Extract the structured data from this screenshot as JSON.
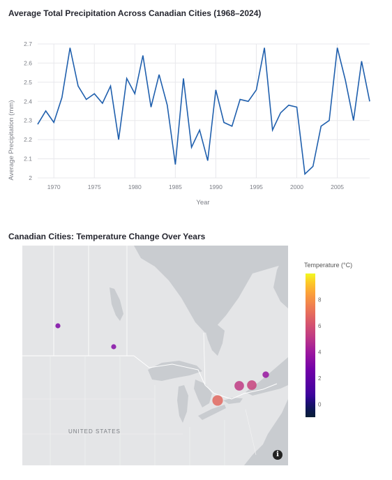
{
  "chart1_title": "Average Total Precipitation Across Canadian Cities (1968–2024)",
  "chart2_title": "Canadian Cities: Temperature Change Over Years",
  "colors": {
    "line": "#1f5fad",
    "grid": "#e8e8ec",
    "axis_text": "#7b7e86"
  },
  "chart_data": [
    {
      "type": "line",
      "title": "Average Total Precipitation Across Canadian Cities (1968–2024)",
      "xlabel": "Year",
      "ylabel": "Average Precipitation (mm)",
      "xlim": [
        1968,
        2009
      ],
      "ylim": [
        2.0,
        2.7
      ],
      "xticks": [
        1970,
        1975,
        1980,
        1985,
        1990,
        1995,
        2000,
        2005
      ],
      "yticks": [
        2,
        2.1,
        2.2,
        2.3,
        2.4,
        2.5,
        2.6,
        2.7
      ],
      "grid": true,
      "x": [
        1968,
        1969,
        1970,
        1971,
        1972,
        1973,
        1974,
        1975,
        1976,
        1977,
        1978,
        1979,
        1980,
        1981,
        1982,
        1983,
        1984,
        1985,
        1986,
        1987,
        1988,
        1989,
        1990,
        1991,
        1992,
        1993,
        1994,
        1995,
        1996,
        1997,
        1998,
        1999,
        2000,
        2001,
        2002,
        2003,
        2004,
        2005,
        2006,
        2007,
        2008,
        2009
      ],
      "y": [
        2.28,
        2.35,
        2.29,
        2.42,
        2.68,
        2.48,
        2.41,
        2.44,
        2.39,
        2.48,
        2.2,
        2.52,
        2.44,
        2.64,
        2.37,
        2.54,
        2.38,
        2.07,
        2.52,
        2.16,
        2.25,
        2.09,
        2.46,
        2.29,
        2.27,
        2.41,
        2.4,
        2.46,
        2.68,
        2.25,
        2.34,
        2.38,
        2.37,
        2.02,
        2.06,
        2.27,
        2.3,
        2.68,
        2.51,
        2.3,
        2.61,
        2.4
      ]
    },
    {
      "type": "scatter",
      "title": "Canadian Cities: Temperature Change Over Years",
      "legend_title": "Temperature (°C)",
      "colorbar_ticks": [
        0,
        2,
        4,
        6,
        8
      ],
      "color_range": [
        -1,
        10
      ],
      "map_label": "UNITED STATES",
      "points": [
        {
          "temp": 3.0,
          "size": 1.0
        },
        {
          "temp": 3.2,
          "size": 1.0
        },
        {
          "temp": 3.8,
          "size": 1.3
        },
        {
          "temp": 5.2,
          "size": 1.9
        },
        {
          "temp": 5.5,
          "size": 1.9
        },
        {
          "temp": 6.8,
          "size": 2.1
        }
      ]
    }
  ]
}
